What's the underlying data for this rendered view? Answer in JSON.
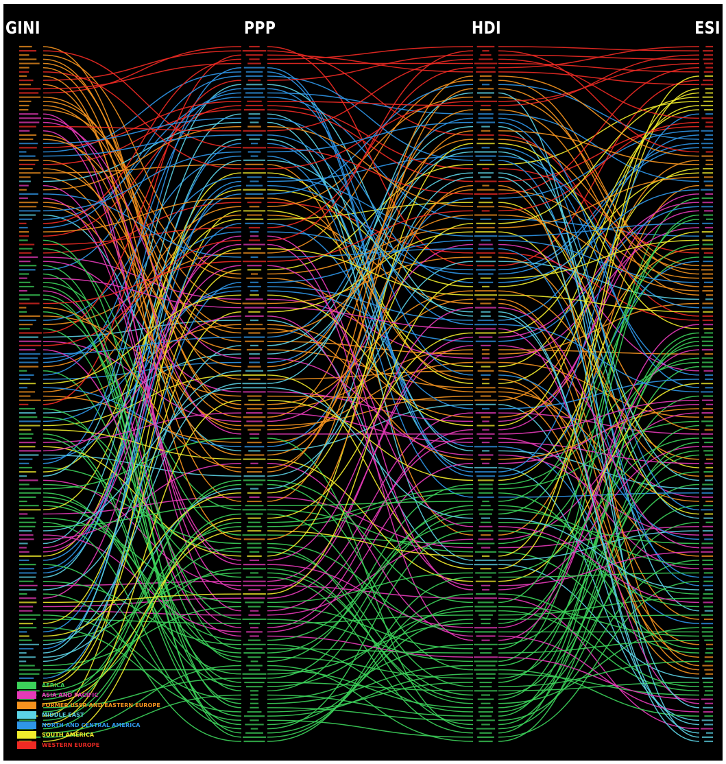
{
  "chart_data": {
    "type": "parallel-sets",
    "axes": [
      "GINI",
      "PPP",
      "HDI",
      "ESI"
    ],
    "legend": [
      {
        "name": "AFRICA",
        "color": "#3cd15a"
      },
      {
        "name": "ASIA AND PACIFIC",
        "color": "#e53ab8"
      },
      {
        "name": "FORMER USSR AND EASTERN EUROPE",
        "color": "#f5931f"
      },
      {
        "name": "MIDDLE EAST",
        "color": "#5cd3e6"
      },
      {
        "name": "NORTH AND CENTRAL AMERICA",
        "color": "#2f96e8"
      },
      {
        "name": "SOUTH AMERICA",
        "color": "#f1ec2c"
      },
      {
        "name": "WESTERN EUROPE",
        "color": "#ee2a24"
      }
    ],
    "regions": [
      "Africa",
      "Asia and Pacific",
      "Former USSR and Eastern Europe",
      "Middle East",
      "North and Central America",
      "South America",
      "Western Europe"
    ],
    "countries_per_axis": 166,
    "rank_note": "Each ribbon is one country, colored by region, connecting its rank position on the GINI, PPP, HDI and ESI columns (top = first listed)."
  }
}
